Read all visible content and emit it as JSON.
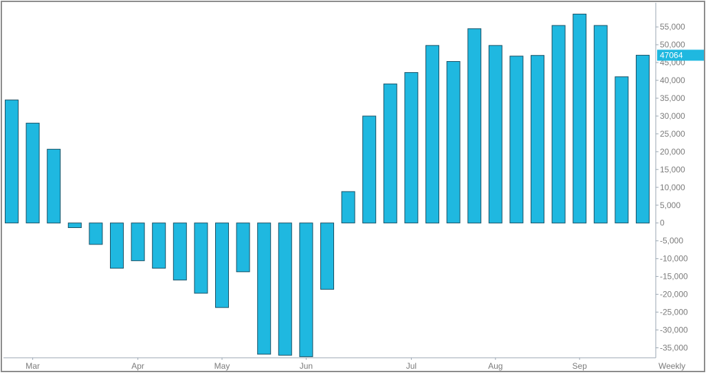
{
  "chart_data": {
    "type": "bar",
    "period_label": "Weekly",
    "x_month_labels": [
      "Mar",
      "Apr",
      "May",
      "Jun",
      "Jul",
      "Aug",
      "Sep"
    ],
    "values": [
      34500,
      28000,
      20700,
      -1300,
      -6000,
      -12700,
      -10600,
      -12700,
      -16000,
      -19700,
      -23700,
      -13700,
      -36800,
      -37100,
      -37500,
      -18600,
      8800,
      30000,
      39000,
      42200,
      49800,
      45300,
      54500,
      49800,
      46800,
      47000,
      55400,
      58600,
      55400,
      41000,
      47064
    ],
    "month_start_index": [
      1,
      6,
      10,
      14,
      19,
      23,
      27
    ],
    "last_value_label": "47064",
    "y_ticks": [
      55000,
      50000,
      45000,
      40000,
      35000,
      30000,
      25000,
      20000,
      15000,
      10000,
      5000,
      0,
      -5000,
      -10000,
      -15000,
      -20000,
      -25000,
      -30000,
      -35000
    ],
    "y_tick_labels": [
      "55,000",
      "50,000",
      "45,000",
      "40,000",
      "35,000",
      "30,000",
      "25,000",
      "20,000",
      "15,000",
      "10,000",
      "5,000",
      "0",
      "-5,000",
      "-10,000",
      "-15,000",
      "-20,000",
      "-25,000",
      "-30,000",
      "-35,000"
    ],
    "ylim": [
      -37800,
      61000
    ],
    "colors": {
      "bar": "#1fb8e0",
      "bar_edge": "#1a4f63",
      "axis": "#9aa6b2",
      "badge": "#1fb8e0"
    }
  }
}
